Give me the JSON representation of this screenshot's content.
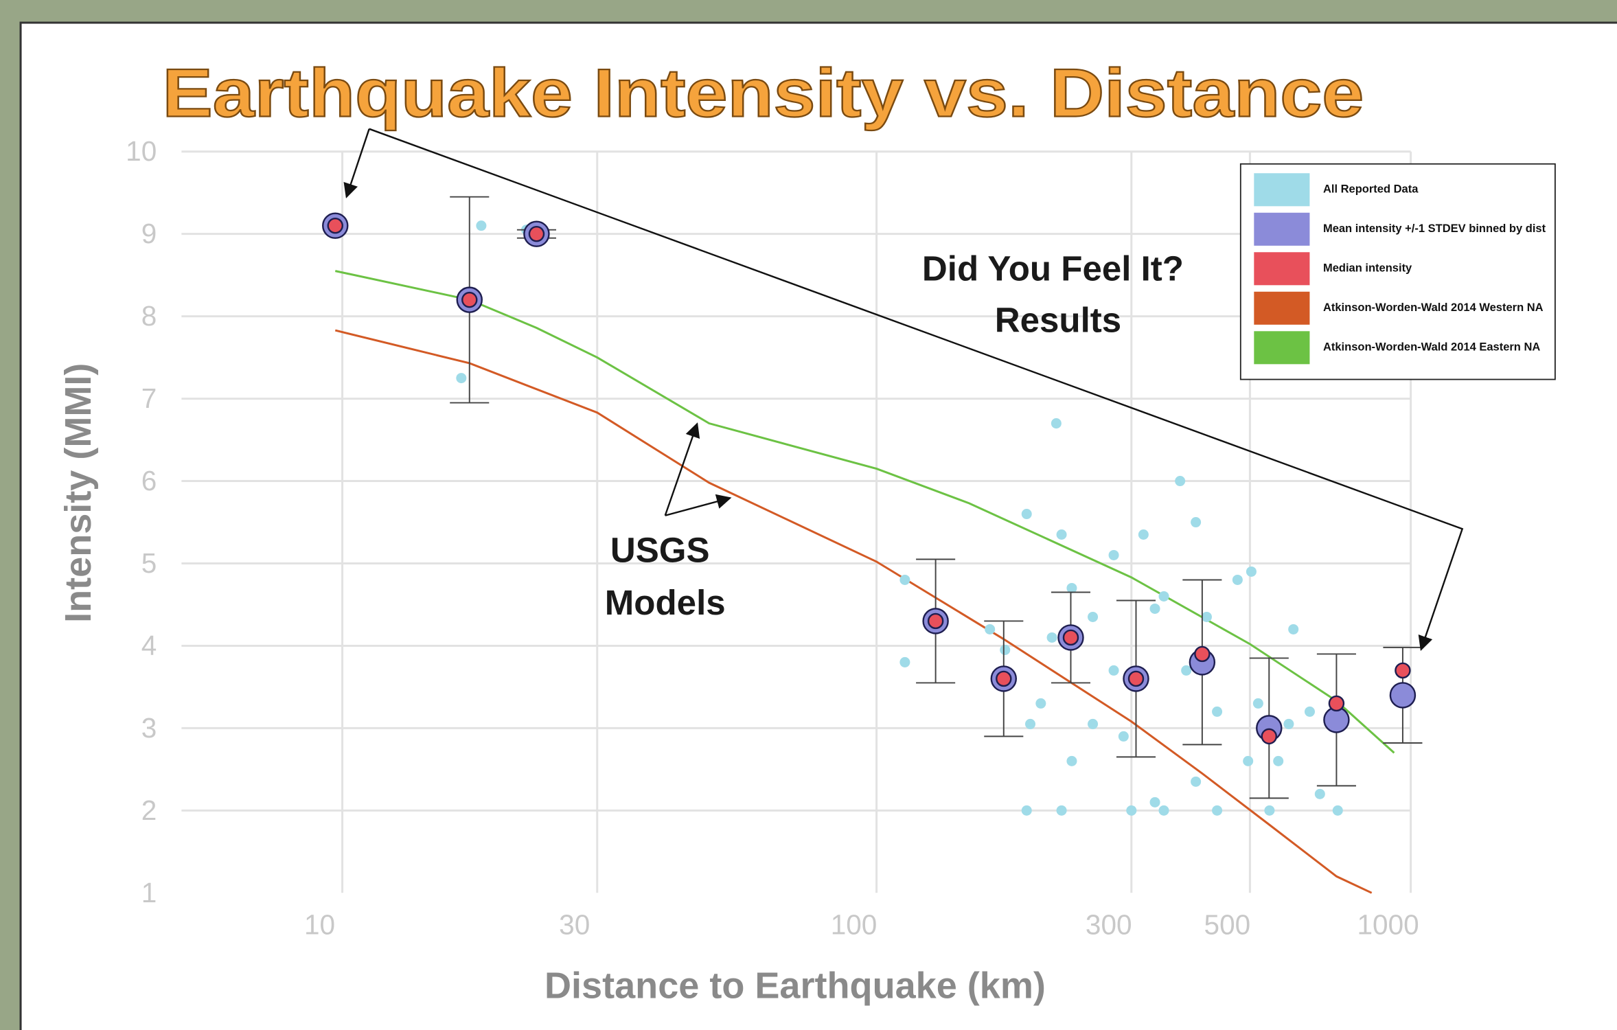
{
  "chart_data": {
    "type": "scatter",
    "title": "Earthquake Intensity vs. Distance",
    "x_label": "Distance to Earthquake (km)",
    "y_label": "Intensity (MMI)",
    "annotations": [
      [
        "Did You Feel It?",
        "Results"
      ],
      [
        "USGS",
        "Models"
      ]
    ],
    "x_scale": "log",
    "xlim": [
      5,
      1000
    ],
    "xticks": [
      10,
      30,
      100,
      300,
      500,
      1000
    ],
    "ylim": [
      1,
      10
    ],
    "yticks": [
      1,
      2,
      3,
      4,
      5,
      6,
      7,
      8,
      9,
      10
    ],
    "grid": true,
    "legend": "upper right",
    "series": [
      {
        "name": "All Reported Data",
        "type": "scatter",
        "color": "#9fdbe8",
        "x": [
          18.2,
          16.7,
          22.1,
          113,
          113,
          217,
          191,
          370,
          396,
          316,
          474,
          503,
          603,
          191,
          222,
          300,
          345,
          434,
          544,
          730,
          676,
          232,
          332,
          254,
          203,
          278,
          232,
          332,
          415,
          591,
          647,
          496,
          213,
          254,
          380,
          434,
          174,
          194,
          290,
          396,
          565,
          163,
          222,
          278,
          345,
          518
        ],
        "values": [
          9.1,
          7.25,
          9.05,
          4.8,
          3.8,
          6.7,
          5.6,
          6.0,
          5.5,
          5.35,
          4.8,
          4.9,
          4.2,
          2.0,
          2.0,
          2.0,
          2.0,
          2.0,
          2.0,
          2.0,
          2.2,
          2.6,
          2.1,
          3.05,
          3.3,
          3.7,
          4.7,
          4.45,
          4.35,
          3.05,
          3.2,
          2.6,
          4.1,
          4.35,
          3.7,
          3.2,
          3.95,
          3.05,
          2.9,
          2.35,
          2.6,
          4.2,
          5.35,
          5.1,
          4.6,
          3.3
        ]
      },
      {
        "name": "Mean intensity +/-1 STDEV binned by dist",
        "type": "errorbar",
        "color": "#8b8bd9",
        "x": [
          9.7,
          17.3,
          23.1,
          129,
          173,
          231,
          306,
          407,
          543,
          726,
          966
        ],
        "values": [
          9.1,
          8.2,
          9.0,
          4.3,
          3.6,
          4.1,
          3.6,
          3.8,
          3.0,
          3.1,
          3.4
        ],
        "errors": [
          null,
          1.25,
          0.05,
          0.75,
          0.7,
          0.55,
          0.95,
          1.0,
          0.85,
          0.8,
          0.58
        ]
      },
      {
        "name": "Median intensity",
        "type": "scatter",
        "color": "#e8505b",
        "x": [
          9.7,
          17.3,
          23.1,
          129,
          173,
          231,
          306,
          407,
          543,
          726,
          966
        ],
        "values": [
          9.1,
          8.2,
          9.0,
          4.3,
          3.6,
          4.1,
          3.6,
          3.9,
          2.9,
          3.3,
          3.7
        ]
      },
      {
        "name": "Atkinson-Worden-Wald 2014 Western NA",
        "type": "line",
        "color": "#d35a25",
        "x": [
          9.7,
          17.3,
          30,
          48.6,
          100,
          173,
          300,
          407,
          543,
          726,
          845
        ],
        "values": [
          7.83,
          7.43,
          6.83,
          5.98,
          5.02,
          4.08,
          3.08,
          2.45,
          1.83,
          1.2,
          1.0
        ]
      },
      {
        "name": "Atkinson-Worden-Wald 2014 Eastern NA",
        "type": "line",
        "color": "#6cc244",
        "x": [
          9.7,
          17.3,
          23.1,
          30,
          48.6,
          100,
          149,
          300,
          500,
          726,
          931
        ],
        "values": [
          8.55,
          8.2,
          7.86,
          7.5,
          6.7,
          6.15,
          5.73,
          4.83,
          4.02,
          3.33,
          2.7
        ]
      }
    ]
  }
}
